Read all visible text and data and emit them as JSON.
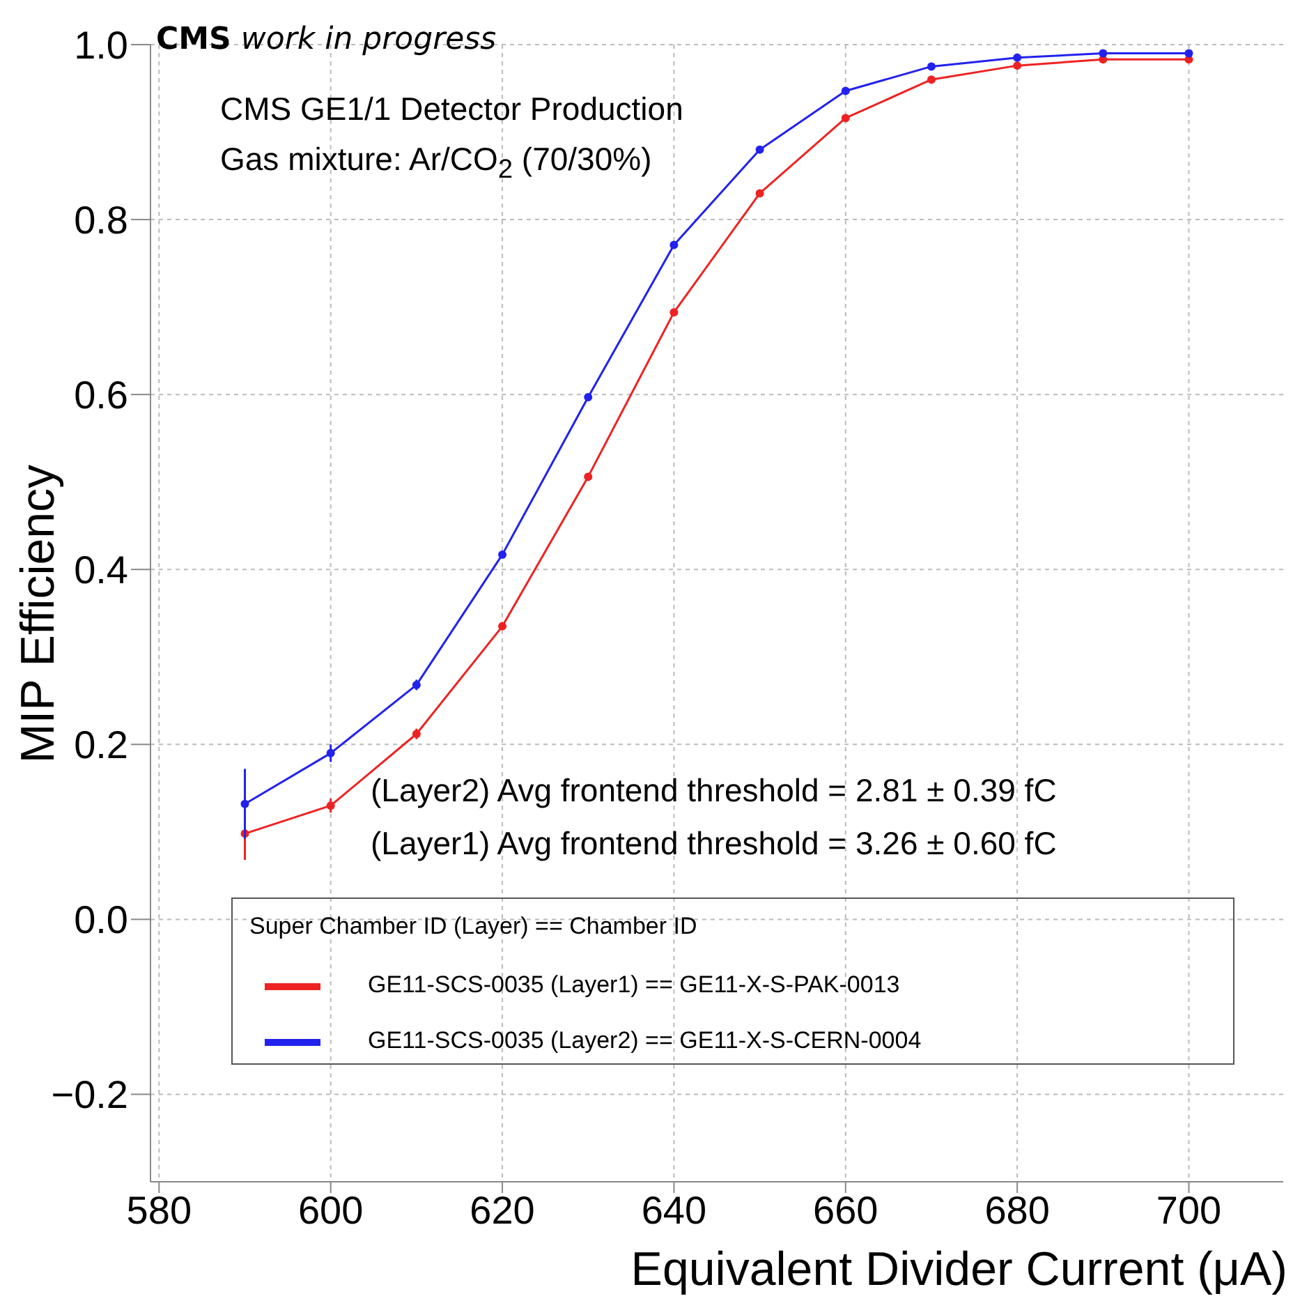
{
  "chart_data": {
    "type": "line",
    "title": "CMS work in progress",
    "xlabel": "Equivalent Divider Current (μA)",
    "ylabel": "MIP Efficiency",
    "legend_title": "Super Chamber ID (Layer) == Chamber ID",
    "annotations": [
      "CMS GE1/1 Detector Production",
      "Gas mixture: Ar/CO$_{2}$ (70/30%)",
      "(Layer2) Avg frontend threshold = 2.81 ± 0.39 fC",
      "(Layer1) Avg frontend threshold = 3.26  ± 0.60 fC"
    ],
    "x": [
      590,
      600,
      610,
      620,
      630,
      640,
      650,
      660,
      670,
      680,
      690,
      700
    ],
    "series": [
      {
        "name": "GE11-SCS-0035 (Layer1) == GE11-X-S-PAK-0013",
        "color": "#ee2222",
        "values": [
          0.098,
          0.13,
          0.212,
          0.335,
          0.506,
          0.694,
          0.83,
          0.916,
          0.96,
          0.976,
          0.983,
          0.983
        ],
        "errors": [
          0.03,
          0.008,
          0.006,
          null,
          null,
          null,
          null,
          null,
          null,
          null,
          null,
          null
        ]
      },
      {
        "name": "GE11-SCS-0035 (Layer2) == GE11-X-S-CERN-0004",
        "color": "#2222ee",
        "values": [
          0.132,
          0.19,
          0.268,
          0.417,
          0.597,
          0.771,
          0.88,
          0.947,
          0.975,
          0.985,
          0.99,
          0.99
        ],
        "errors": [
          0.04,
          0.01,
          0.006,
          null,
          null,
          null,
          null,
          null,
          null,
          null,
          null,
          null
        ]
      }
    ],
    "xlim": [
      579,
      711
    ],
    "xticks": [
      580,
      600,
      620,
      640,
      660,
      680,
      700
    ],
    "ylim": [
      -0.3,
      1.0
    ],
    "yticks": [
      -0.2,
      {
        "value": 0,
        "label": "0.0"
      },
      0.2,
      0.4,
      0.6,
      0.8,
      {
        "value": 1,
        "label": "1.0"
      }
    ],
    "grid": true,
    "legend": "bottom",
    "marker": "circle",
    "line_style": "solid"
  }
}
